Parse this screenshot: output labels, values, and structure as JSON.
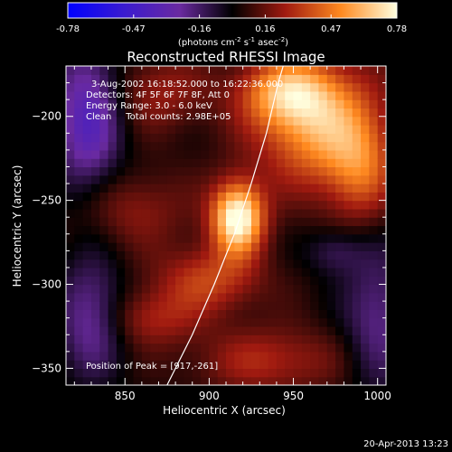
{
  "chart_data": {
    "type": "heatmap",
    "title": "Reconstructed RHESSI Image",
    "xlabel": "Heliocentric X (arcsec)",
    "ylabel": "Heliocentric Y (arcsec)",
    "xlim": [
      815,
      1005
    ],
    "ylim": [
      -360,
      -170
    ],
    "xticks": [
      850,
      900,
      950,
      1000
    ],
    "yticks": [
      -200,
      -250,
      -300,
      -350
    ],
    "colorbar": {
      "min": -0.78,
      "max": 0.78,
      "ticks": [
        "-0.78",
        "-0.47",
        "-0.16",
        "0.16",
        "0.47",
        "0.78"
      ],
      "label_main": "(photons cm",
      "label_exp1": "-2",
      "label_mid": " s",
      "label_exp2": "-1",
      "label_end": " asec",
      "label_exp3": "-2",
      "label_close": ")"
    },
    "annotations": [
      "3-Aug-2002 16:18:52.000 to 16:22:36.000",
      "Detectors: 4F 5F 6F 7F 8F, Att 0",
      "Energy Range: 3.0 - 6.0 keV",
      "Clean     Total counts: 2.98E+05"
    ],
    "peak_label": "Position of Peak = [917,-261]",
    "peak": [
      917,
      -261
    ],
    "limb_curve": [
      [
        875,
        -360
      ],
      [
        890,
        -330
      ],
      [
        903,
        -300
      ],
      [
        915,
        -270
      ],
      [
        925,
        -240
      ],
      [
        934,
        -210
      ],
      [
        941,
        -180
      ],
      [
        944,
        -170
      ]
    ],
    "sources": [
      {
        "x": 917,
        "y": -260,
        "sx": 11,
        "sy": 15,
        "amp": 0.78
      },
      {
        "x": 965,
        "y": -205,
        "sx": 26,
        "sy": 26,
        "amp": 0.52
      },
      {
        "x": 945,
        "y": -185,
        "sx": 20,
        "sy": 14,
        "amp": 0.4
      },
      {
        "x": 990,
        "y": -232,
        "sx": 14,
        "sy": 22,
        "amp": 0.3
      },
      {
        "x": 900,
        "y": -297,
        "sx": 22,
        "sy": 14,
        "amp": 0.3
      },
      {
        "x": 935,
        "y": -345,
        "sx": 30,
        "sy": 14,
        "amp": 0.24
      },
      {
        "x": 865,
        "y": -320,
        "sx": 20,
        "sy": 12,
        "amp": 0.22
      },
      {
        "x": 855,
        "y": -255,
        "sx": 24,
        "sy": 16,
        "amp": 0.18
      },
      {
        "x": 870,
        "y": -185,
        "sx": 20,
        "sy": 16,
        "amp": 0.2
      }
    ],
    "negatives": [
      {
        "x": 828,
        "y": -200,
        "sx": 14,
        "sy": 32,
        "amp": 0.42
      },
      {
        "x": 830,
        "y": -320,
        "sx": 14,
        "sy": 24,
        "amp": 0.32
      },
      {
        "x": 1000,
        "y": -320,
        "sx": 14,
        "sy": 30,
        "amp": 0.26
      },
      {
        "x": 975,
        "y": -280,
        "sx": 12,
        "sy": 10,
        "amp": 0.18
      }
    ],
    "background": 0.04
  },
  "footer": {
    "timestamp": "20-Apr-2013 13:23"
  }
}
